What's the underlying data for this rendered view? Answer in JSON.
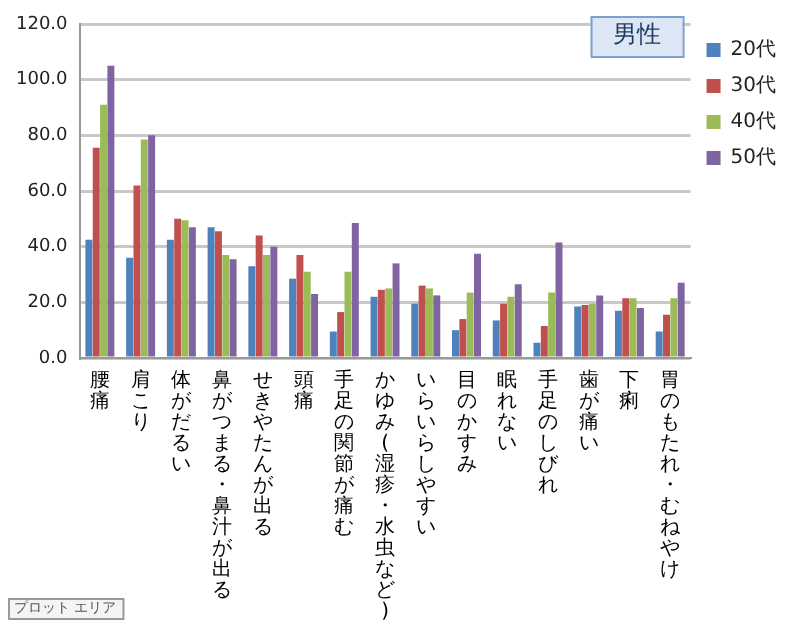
{
  "chart_data": {
    "type": "bar",
    "title": "男性",
    "categories": [
      "腰痛",
      "肩こり",
      "体がだるい",
      "鼻がつまる・鼻汁が出る",
      "せきやたんが出る",
      "頭痛",
      "手足の関節が痛む",
      "かゆみ(湿疹・水虫など)",
      "いらいらしやすい",
      "目のかすみ",
      "眠れない",
      "手足のしびれ",
      "歯が痛い",
      "下痢",
      "胃のもたれ・むねやけ"
    ],
    "series": [
      {
        "name": "20代",
        "color": "#4f81bd",
        "values": [
          42.5,
          36,
          42.5,
          47,
          33,
          28.5,
          9.5,
          22,
          19.5,
          10,
          13.5,
          5.5,
          18.5,
          17,
          9.5
        ]
      },
      {
        "name": "30代",
        "color": "#c0504d",
        "values": [
          75.5,
          62,
          50,
          45.5,
          44,
          37,
          16.5,
          24.5,
          26,
          14,
          19.5,
          11.5,
          19,
          21.5,
          15.5
        ]
      },
      {
        "name": "40代",
        "color": "#9bbb59",
        "values": [
          91,
          78.5,
          49.5,
          37,
          37,
          31,
          31,
          25,
          25,
          23.5,
          22,
          23.5,
          19.5,
          21.5,
          21.5
        ]
      },
      {
        "name": "50代",
        "color": "#8064a2",
        "values": [
          105,
          80,
          47,
          35.5,
          40,
          23,
          48.5,
          34,
          22.5,
          37.5,
          26.5,
          41.5,
          22.5,
          18,
          27
        ]
      }
    ],
    "ylim": [
      0,
      120
    ],
    "yticks": [
      {
        "value": 0,
        "label": "0.0"
      },
      {
        "value": 20,
        "label": "20.0"
      },
      {
        "value": 40,
        "label": "40.0"
      },
      {
        "value": 60,
        "label": "60.0"
      },
      {
        "value": 80,
        "label": "80.0"
      },
      {
        "value": 100,
        "label": "100.0"
      },
      {
        "value": 120,
        "label": "120.0"
      }
    ],
    "grid": "y",
    "legend": "right",
    "annotations": [
      "プロット エリア"
    ]
  }
}
